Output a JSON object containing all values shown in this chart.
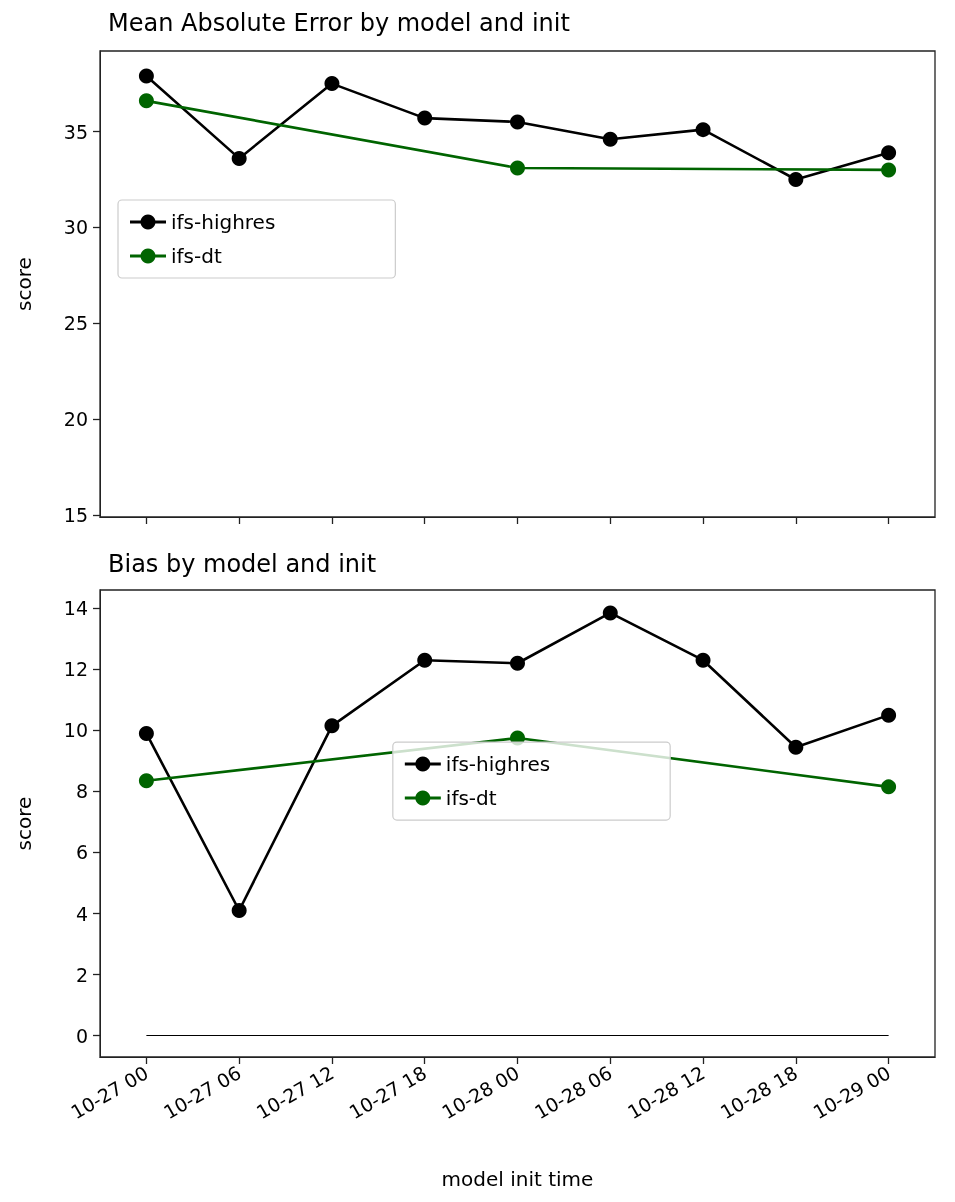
{
  "chart_data": [
    {
      "type": "line",
      "title": "Mean Absolute Error by model and init",
      "ylabel": "score",
      "ylim": [
        14.9,
        39.2
      ],
      "categories": [
        "10-27 00",
        "10-27 06",
        "10-27 12",
        "10-27 18",
        "10-28 00",
        "10-28 06",
        "10-28 12",
        "10-28 18",
        "10-29 00"
      ],
      "yticks": [
        15,
        20,
        25,
        30,
        35
      ],
      "tick_labels": "y",
      "legend": "left",
      "marker": "circle",
      "grid": false,
      "series": [
        {
          "name": "ifs-highres",
          "color": "#000000",
          "values": [
            37.9,
            33.6,
            37.5,
            35.7,
            35.5,
            34.6,
            35.1,
            32.5,
            33.9
          ]
        },
        {
          "name": "ifs-dt",
          "color": "#006400",
          "x": [
            "10-27 00",
            "10-28 00",
            "10-29 00"
          ],
          "values": [
            36.6,
            33.1,
            33.0
          ]
        }
      ]
    },
    {
      "type": "line",
      "title": "Bias by model and init",
      "ylabel": "score",
      "xlabel": "model init time",
      "ylim": [
        -0.7,
        14.6
      ],
      "categories": [
        "10-27 00",
        "10-27 06",
        "10-27 12",
        "10-27 18",
        "10-28 00",
        "10-28 06",
        "10-28 12",
        "10-28 18",
        "10-29 00"
      ],
      "yticks": [
        0,
        2,
        4,
        6,
        8,
        10,
        12,
        14
      ],
      "legend": "center",
      "marker": "circle",
      "grid": false,
      "ref_lines": [
        {
          "axis": "y",
          "value": 0,
          "color": "#000000"
        }
      ],
      "series": [
        {
          "name": "ifs-highres",
          "color": "#000000",
          "values": [
            9.9,
            4.1,
            10.15,
            12.3,
            12.2,
            13.85,
            12.3,
            9.45,
            10.5
          ]
        },
        {
          "name": "ifs-dt",
          "color": "#006400",
          "x": [
            "10-27 00",
            "10-28 00",
            "10-29 00"
          ],
          "values": [
            8.35,
            9.75,
            8.15
          ]
        }
      ]
    }
  ]
}
